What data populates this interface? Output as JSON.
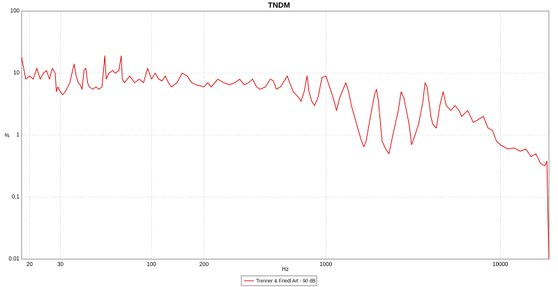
{
  "chart_data": {
    "type": "line",
    "title": "TNDM",
    "xlabel": "Hz",
    "ylabel": "%",
    "xscale": "log",
    "yscale": "log",
    "grid": true,
    "legend": "bottom",
    "xlim": [
      18,
      19000
    ],
    "ylim": [
      0.01,
      100
    ],
    "xticks": [
      20,
      30,
      100,
      200,
      1000,
      10000
    ],
    "yticks": [
      0.01,
      {
        "value": 0.1,
        "label": "0,1"
      },
      1,
      10,
      100
    ],
    "x": [
      18,
      19,
      20,
      21,
      22,
      23,
      24,
      25,
      26,
      27,
      28,
      28.5,
      29,
      30,
      31,
      32,
      34,
      35,
      36,
      37,
      38,
      39,
      40,
      41,
      42,
      43,
      44,
      46,
      48,
      50,
      52,
      54,
      55,
      57,
      60,
      62,
      65,
      67,
      68,
      70,
      75,
      80,
      85,
      90,
      95,
      100,
      105,
      110,
      115,
      120,
      125,
      130,
      140,
      150,
      160,
      170,
      180,
      200,
      210,
      220,
      240,
      260,
      280,
      300,
      320,
      340,
      360,
      380,
      400,
      420,
      450,
      480,
      500,
      520,
      550,
      600,
      620,
      650,
      700,
      720,
      750,
      780,
      800,
      830,
      860,
      900,
      950,
      1000,
      1050,
      1100,
      1150,
      1200,
      1300,
      1350,
      1400,
      1500,
      1600,
      1650,
      1700,
      1800,
      1900,
      1950,
      2000,
      2100,
      2200,
      2300,
      2400,
      2600,
      2700,
      2800,
      3000,
      3100,
      3200,
      3400,
      3600,
      3700,
      3800,
      4000,
      4100,
      4300,
      4500,
      4700,
      4900,
      5200,
      5500,
      5800,
      6000,
      6500,
      7000,
      7500,
      8000,
      8500,
      9000,
      9500,
      10000,
      11000,
      12000,
      13000,
      14000,
      15000,
      16000,
      17000,
      18000,
      18500,
      18800,
      19000
    ],
    "series": [
      {
        "name": "Trenner & Friedl Art - 90 dB",
        "color": "#e00000",
        "values": [
          18,
          8,
          9,
          8,
          12,
          8,
          10,
          11,
          8,
          12,
          10,
          5,
          6,
          5,
          4.5,
          5,
          7,
          10,
          14,
          9,
          7,
          6.5,
          5.5,
          11,
          12,
          7,
          6,
          5.5,
          6,
          5.5,
          6,
          19,
          8,
          10,
          11,
          10,
          11,
          19,
          8,
          7,
          9,
          7,
          8,
          7,
          12,
          8,
          10,
          8,
          7.5,
          9,
          7,
          6,
          7,
          10,
          9,
          7,
          6.5,
          6,
          7,
          6,
          8,
          7,
          6.5,
          7,
          8,
          6.5,
          7,
          8,
          6,
          5.5,
          6,
          8,
          7.5,
          5.5,
          6,
          9,
          7,
          5,
          4,
          3.5,
          5,
          9,
          5,
          3.5,
          3,
          4,
          8.5,
          9,
          6,
          4,
          2.5,
          4,
          7,
          5,
          3,
          1.5,
          0.8,
          0.65,
          0.8,
          2,
          4.5,
          5.5,
          3.5,
          0.8,
          0.6,
          0.5,
          0.9,
          2.5,
          5,
          4,
          1.5,
          0.7,
          0.9,
          1.5,
          3.5,
          7,
          6,
          2,
          1.5,
          1.3,
          3,
          5,
          3,
          2.5,
          3,
          2.5,
          2,
          2.5,
          1.6,
          1.8,
          2,
          1.3,
          1.2,
          0.8,
          0.7,
          0.6,
          0.62,
          0.55,
          0.6,
          0.45,
          0.5,
          0.35,
          0.32,
          0.38,
          0.04,
          0.01
        ]
      }
    ]
  }
}
